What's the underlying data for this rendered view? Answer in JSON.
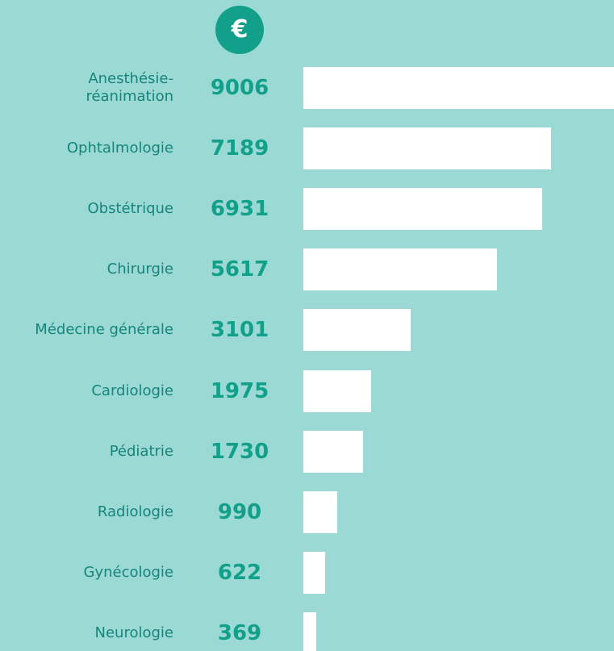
{
  "chart_data": {
    "type": "hbar",
    "unit_badge": "€",
    "categories": [
      "Anesthésie-réanimation",
      "Ophtalmologie",
      "Obstétrique",
      "Chirurgie",
      "Médecine générale",
      "Cardiologie",
      "Pédiatrie",
      "Radiologie",
      "Gynécologie",
      "Neurologie"
    ],
    "values": [
      9006,
      7189,
      6931,
      5617,
      3101,
      1975,
      1730,
      990,
      622,
      369
    ],
    "color": "#ffffff",
    "xlim": [
      0,
      9006
    ]
  }
}
